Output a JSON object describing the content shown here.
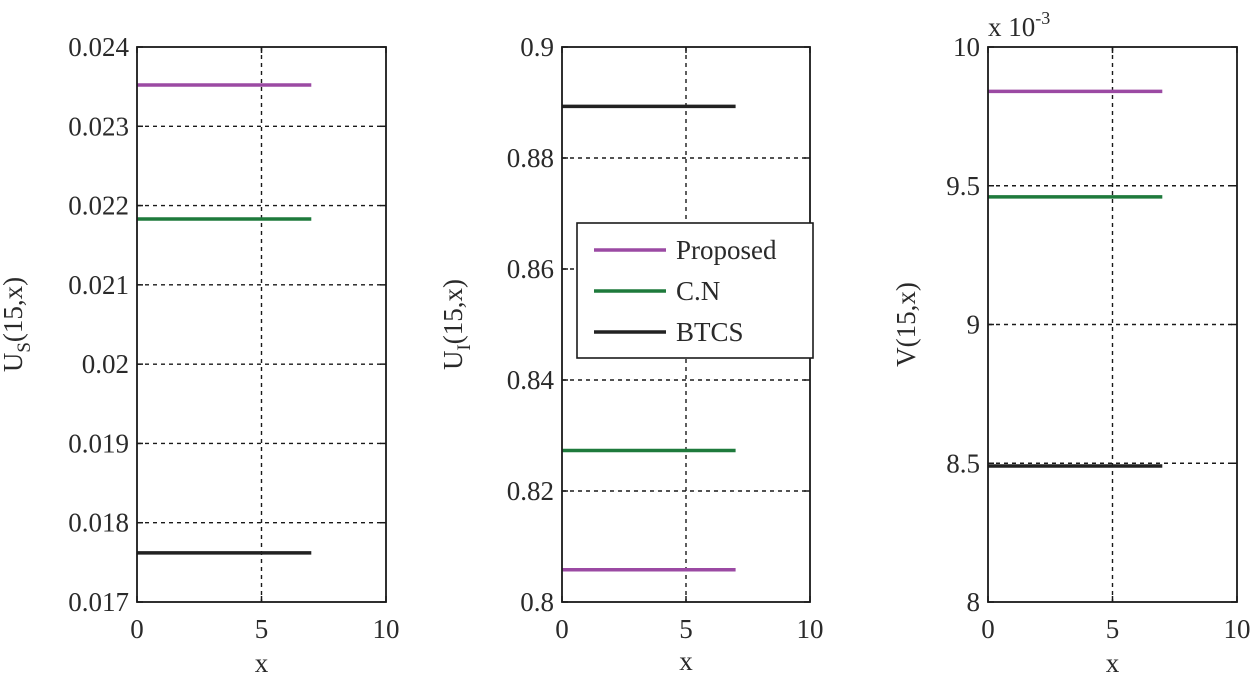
{
  "chart_data": [
    {
      "type": "line",
      "xlabel": "x",
      "ylabel": "U",
      "ylabel_sub": "S",
      "ylabel_tail": "(15,x)",
      "xlim": [
        0,
        10
      ],
      "ylim": [
        0.017,
        0.024
      ],
      "xticks": [
        "0",
        "5",
        "10"
      ],
      "yticks": [
        "0.017",
        "0.018",
        "0.019",
        "0.02",
        "0.021",
        "0.022",
        "0.023",
        "0.024"
      ],
      "grid": true,
      "series": [
        {
          "name": "Proposed",
          "color": "#9b4aa3",
          "x": [
            0,
            7
          ],
          "y": [
            0.02352,
            0.02352
          ]
        },
        {
          "name": "C.N",
          "color": "#1e7a3c",
          "x": [
            0,
            7
          ],
          "y": [
            0.02183,
            0.02183
          ]
        },
        {
          "name": "BTCS",
          "color": "#222222",
          "x": [
            0,
            7
          ],
          "y": [
            0.01762,
            0.01762
          ]
        }
      ]
    },
    {
      "type": "line",
      "xlabel": "x",
      "ylabel": "U",
      "ylabel_sub": "I",
      "ylabel_tail": "(15,x)",
      "xlim": [
        0,
        10
      ],
      "ylim": [
        0.8,
        0.9
      ],
      "xticks": [
        "0",
        "5",
        "10"
      ],
      "yticks": [
        "0.8",
        "0.82",
        "0.84",
        "0.86",
        "0.88",
        "0.9"
      ],
      "grid": true,
      "legend": {
        "position": "center",
        "entries": [
          "Proposed",
          "C.N",
          "BTCS"
        ]
      },
      "series": [
        {
          "name": "Proposed",
          "color": "#9b4aa3",
          "x": [
            0,
            7
          ],
          "y": [
            0.8058,
            0.8058
          ]
        },
        {
          "name": "C.N",
          "color": "#1e7a3c",
          "x": [
            0,
            7
          ],
          "y": [
            0.8273,
            0.8273
          ]
        },
        {
          "name": "BTCS",
          "color": "#222222",
          "x": [
            0,
            7
          ],
          "y": [
            0.8893,
            0.8893
          ]
        }
      ]
    },
    {
      "type": "line",
      "xlabel": "x",
      "ylabel": "V(15,x)",
      "ylabel_sub": "",
      "ylabel_tail": "",
      "exponent_base": "x 10",
      "exponent_power": "-3",
      "xlim": [
        0,
        10
      ],
      "ylim": [
        8,
        10
      ],
      "xticks": [
        "0",
        "5",
        "10"
      ],
      "yticks": [
        "8",
        "8.5",
        "9",
        "9.5",
        "10"
      ],
      "grid": true,
      "series": [
        {
          "name": "Proposed",
          "color": "#9b4aa3",
          "x": [
            0,
            7
          ],
          "y": [
            9.84,
            9.84
          ]
        },
        {
          "name": "C.N",
          "color": "#1e7a3c",
          "x": [
            0,
            7
          ],
          "y": [
            9.46,
            9.46
          ]
        },
        {
          "name": "BTCS",
          "color": "#222222",
          "x": [
            0,
            7
          ],
          "y": [
            8.49,
            8.49
          ]
        }
      ]
    }
  ]
}
